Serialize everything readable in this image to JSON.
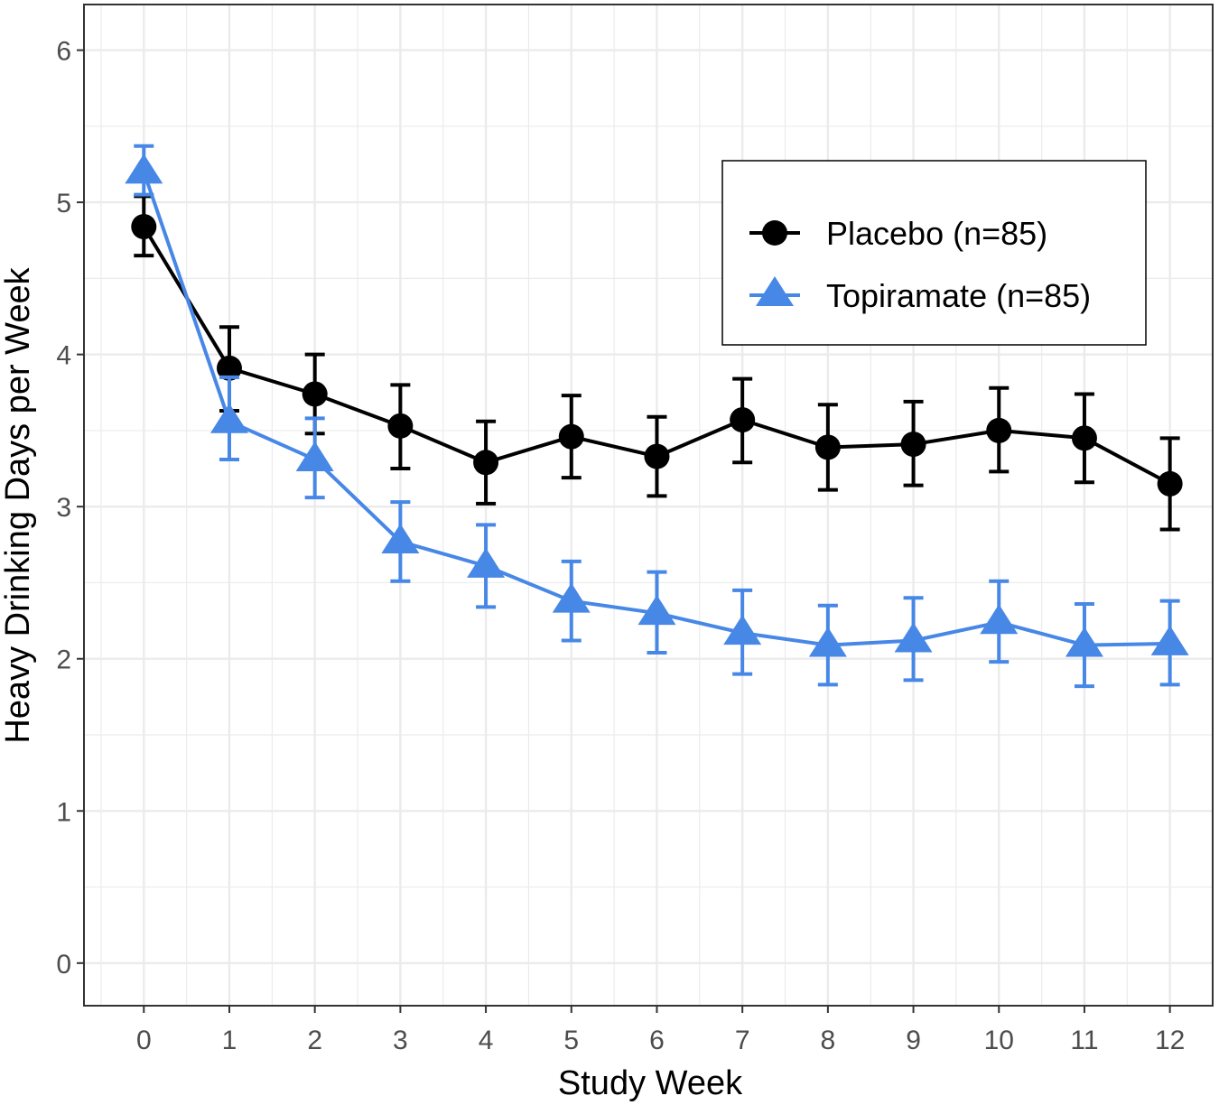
{
  "chart_data": {
    "type": "line",
    "xlabel": "Study Week",
    "ylabel": "Heavy Drinking Days per Week",
    "x": [
      0,
      1,
      2,
      3,
      4,
      5,
      6,
      7,
      8,
      9,
      10,
      11,
      12
    ],
    "xlim": [
      -0.7,
      12.5
    ],
    "ylim": [
      -0.28,
      6.3
    ],
    "x_ticks": [
      "0",
      "1",
      "2",
      "3",
      "4",
      "5",
      "6",
      "7",
      "8",
      "9",
      "10",
      "11",
      "12"
    ],
    "y_ticks": [
      "0",
      "1",
      "2",
      "3",
      "4",
      "5",
      "6"
    ],
    "grid": true,
    "legend_position": "top-right",
    "series": [
      {
        "name": "Placebo (n=85)",
        "color": "#000000",
        "marker": "circle",
        "values": [
          4.84,
          3.91,
          3.74,
          3.53,
          3.29,
          3.46,
          3.33,
          3.57,
          3.39,
          3.41,
          3.5,
          3.45,
          3.15
        ],
        "lower": [
          4.65,
          3.63,
          3.48,
          3.25,
          3.02,
          3.19,
          3.07,
          3.29,
          3.11,
          3.14,
          3.23,
          3.16,
          2.85
        ],
        "upper": [
          5.04,
          4.18,
          4.0,
          3.8,
          3.56,
          3.73,
          3.59,
          3.84,
          3.67,
          3.69,
          3.78,
          3.74,
          3.45
        ]
      },
      {
        "name": "Topiramate (n=85)",
        "color": "#4787e6",
        "marker": "triangle",
        "values": [
          5.2,
          3.56,
          3.31,
          2.77,
          2.61,
          2.38,
          2.3,
          2.17,
          2.09,
          2.12,
          2.24,
          2.09,
          2.1
        ],
        "lower": [
          5.05,
          3.31,
          3.06,
          2.51,
          2.34,
          2.12,
          2.04,
          1.9,
          1.83,
          1.86,
          1.98,
          1.82,
          1.83
        ],
        "upper": [
          5.37,
          3.85,
          3.58,
          3.03,
          2.88,
          2.64,
          2.57,
          2.45,
          2.35,
          2.4,
          2.51,
          2.36,
          2.38
        ]
      }
    ]
  }
}
